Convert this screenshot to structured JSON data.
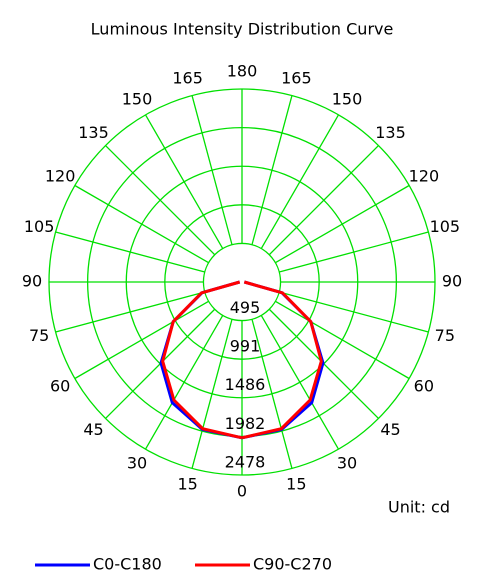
{
  "chart_data": {
    "type": "polar",
    "title": "Luminous Intensity Distribution Curve",
    "unit": "Unit: cd",
    "x": [
      0,
      15,
      30,
      45,
      60,
      75,
      90
    ],
    "series": [
      {
        "name": "C0-C180",
        "color": "#0000ff",
        "values": [
          2000,
          1960,
          1790,
          1470,
          1020,
          530,
          30
        ]
      },
      {
        "name": "C90-C270",
        "color": "#ff0000",
        "values": [
          2000,
          1950,
          1750,
          1440,
          1020,
          540,
          30
        ]
      }
    ],
    "angle_ticks": [
      0,
      15,
      30,
      45,
      60,
      75,
      90,
      105,
      120,
      135,
      150,
      165,
      180
    ],
    "rlim": [
      0,
      2478
    ],
    "rticks": [
      495,
      991,
      1486,
      1982,
      2478
    ],
    "grid_color": "#00e000"
  }
}
